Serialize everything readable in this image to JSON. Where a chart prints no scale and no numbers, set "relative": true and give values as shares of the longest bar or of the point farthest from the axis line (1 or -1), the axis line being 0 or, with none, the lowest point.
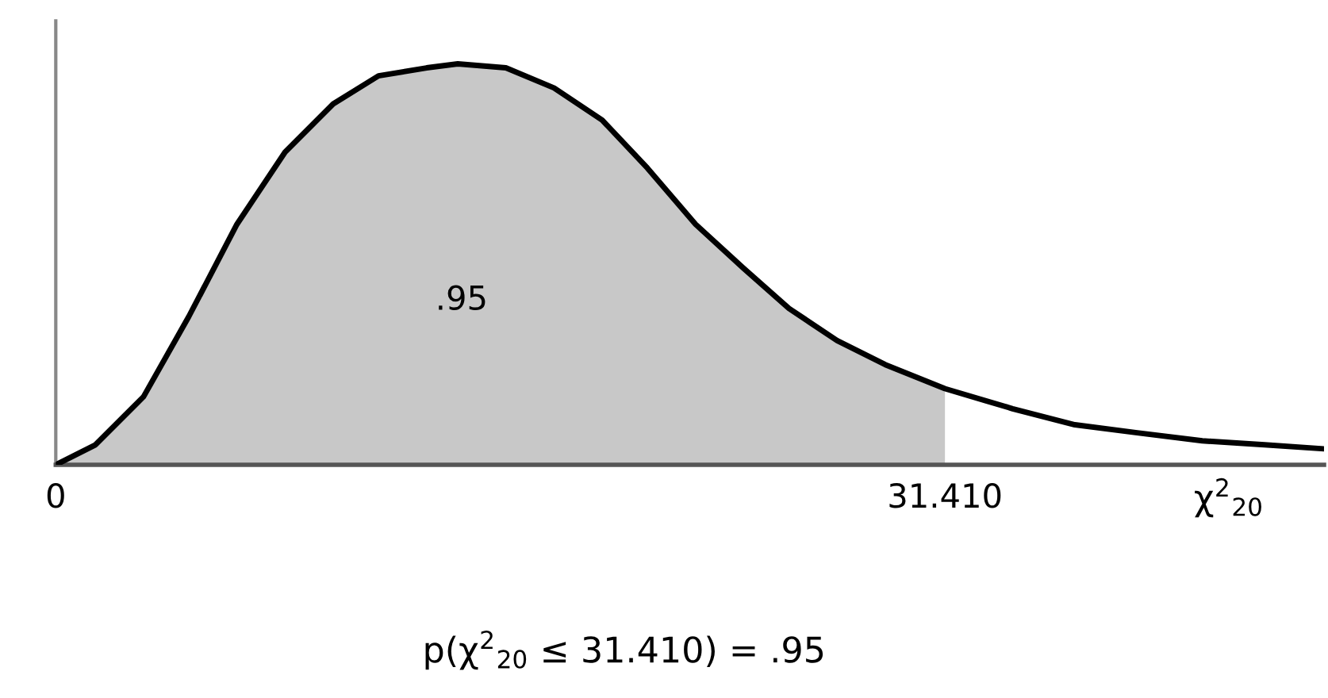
{
  "chart_data": {
    "type": "line",
    "relative": true,
    "xlabel": "χ$^{2}$$_{20}$",
    "xlim": [
      0,
      44.8
    ],
    "xticks": [
      0,
      {
        "value": 31.41,
        "label": "31.410"
      }
    ],
    "tick_labels": "x",
    "grid": false,
    "series": [
      {
        "type": "area",
        "color": "#c8c8c8",
        "x": [
          0,
          1.4,
          3.1,
          4.7,
          6.4,
          8.1,
          9.8,
          11.4,
          13.1,
          14.2,
          15.9,
          17.6,
          19.3,
          20.9,
          22.6,
          24.3,
          25.9,
          27.6,
          29.3,
          31.41
        ],
        "values": [
          0,
          0.05,
          0.17,
          0.37,
          0.6,
          0.78,
          0.9,
          0.97,
          0.99,
          1.0,
          0.99,
          0.94,
          0.86,
          0.74,
          0.6,
          0.49,
          0.39,
          0.31,
          0.25,
          0.19
        ]
      },
      {
        "color": "#000000",
        "x": [
          0,
          1.4,
          3.1,
          4.7,
          6.4,
          8.1,
          9.8,
          11.4,
          13.1,
          14.2,
          15.9,
          17.6,
          19.3,
          20.9,
          22.6,
          24.3,
          25.9,
          27.6,
          29.3,
          31.41,
          33.8,
          36.0,
          38.2,
          40.5,
          42.7,
          44.8
        ],
        "values": [
          0,
          0.05,
          0.17,
          0.37,
          0.6,
          0.78,
          0.9,
          0.97,
          0.99,
          1.0,
          0.99,
          0.94,
          0.86,
          0.74,
          0.6,
          0.49,
          0.39,
          0.31,
          0.25,
          0.19,
          0.14,
          0.1,
          0.08,
          0.06,
          0.05,
          0.04
        ]
      }
    ],
    "annotations": [
      ".95",
      "p(χ$^{2}$$_{20}$ ≤ 31.410) = .95"
    ]
  }
}
